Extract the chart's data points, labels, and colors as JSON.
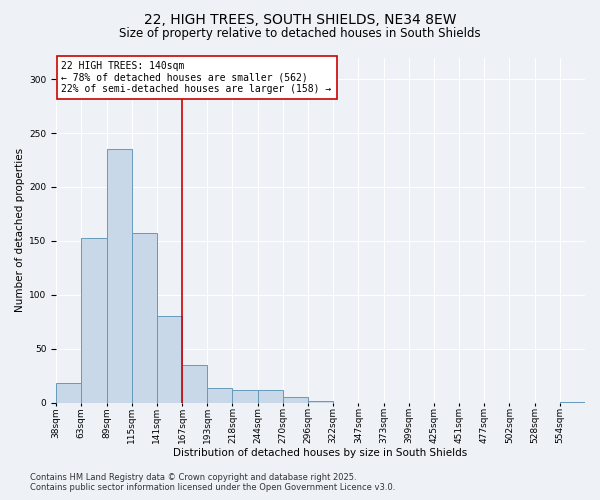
{
  "title_line1": "22, HIGH TREES, SOUTH SHIELDS, NE34 8EW",
  "title_line2": "Size of property relative to detached houses in South Shields",
  "bar_labels": [
    "38sqm",
    "63sqm",
    "89sqm",
    "115sqm",
    "141sqm",
    "167sqm",
    "193sqm",
    "218sqm",
    "244sqm",
    "270sqm",
    "296sqm",
    "322sqm",
    "347sqm",
    "373sqm",
    "399sqm",
    "425sqm",
    "451sqm",
    "477sqm",
    "502sqm",
    "528sqm",
    "554sqm"
  ],
  "bar_values": [
    18,
    153,
    235,
    157,
    80,
    35,
    14,
    12,
    12,
    5,
    2,
    0,
    0,
    0,
    0,
    0,
    0,
    0,
    0,
    0,
    1
  ],
  "bar_color": "#c8d8e8",
  "bar_edge_color": "#6699bb",
  "property_line_value": 140,
  "ylabel": "Number of detached properties",
  "xlabel": "Distribution of detached houses by size in South Shields",
  "ylim": [
    0,
    320
  ],
  "yticks": [
    0,
    50,
    100,
    150,
    200,
    250,
    300
  ],
  "annotation_text": "22 HIGH TREES: 140sqm\n← 78% of detached houses are smaller (562)\n22% of semi-detached houses are larger (158) →",
  "annotation_box_color": "#ffffff",
  "annotation_border_color": "#cc0000",
  "red_line_color": "#cc0000",
  "footer_line1": "Contains HM Land Registry data © Crown copyright and database right 2025.",
  "footer_line2": "Contains public sector information licensed under the Open Government Licence v3.0.",
  "background_color": "#eef2f6",
  "grid_color": "#ffffff",
  "title_fontsize": 10,
  "subtitle_fontsize": 8.5,
  "axis_label_fontsize": 7.5,
  "tick_fontsize": 6.5,
  "annotation_fontsize": 7,
  "footer_fontsize": 6
}
